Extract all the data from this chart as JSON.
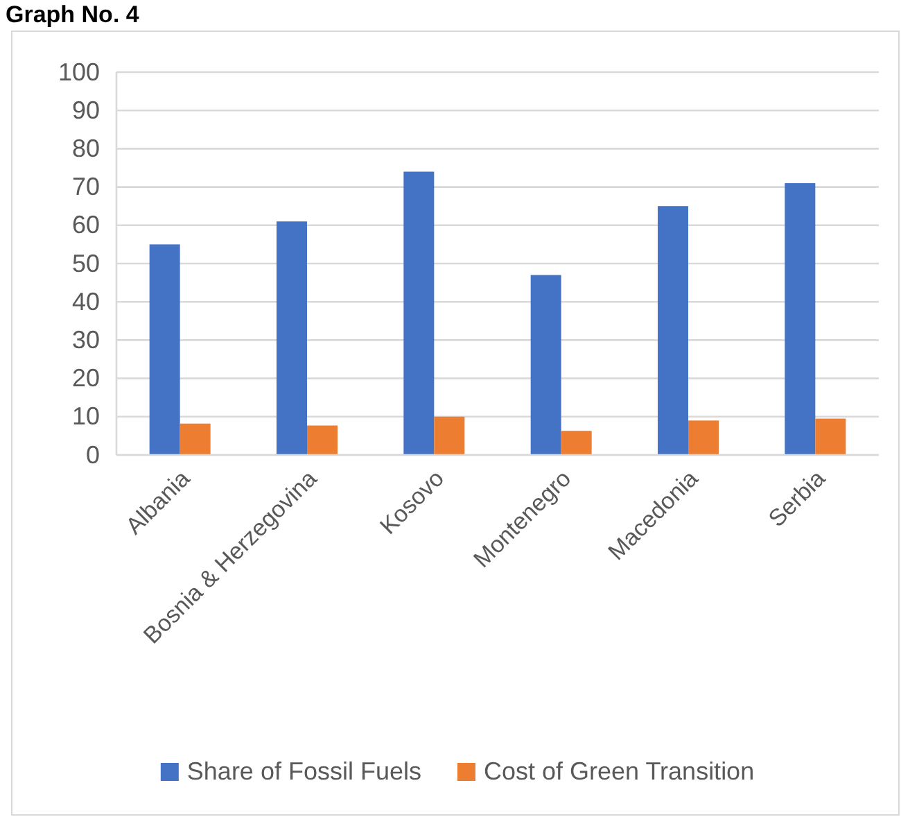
{
  "chart_data": {
    "type": "bar",
    "title": "Graph No. 4",
    "categories": [
      "Albania",
      "Bosnia & Herzegovina",
      "Kosovo",
      "Montenegro",
      "Macedonia",
      "Serbia"
    ],
    "series": [
      {
        "name": "Share of Fossil Fuels",
        "color": "#4472c4",
        "values": [
          55,
          61,
          74,
          47,
          65,
          71
        ]
      },
      {
        "name": "Cost of Green Transition",
        "color": "#ed7d31",
        "values": [
          8.2,
          7.7,
          10,
          6.3,
          9,
          9.5
        ]
      }
    ],
    "ylim": [
      0,
      100
    ],
    "yticks": [
      0,
      10,
      20,
      30,
      40,
      50,
      60,
      70,
      80,
      90,
      100
    ],
    "grid": "y",
    "legend": "bottom"
  }
}
